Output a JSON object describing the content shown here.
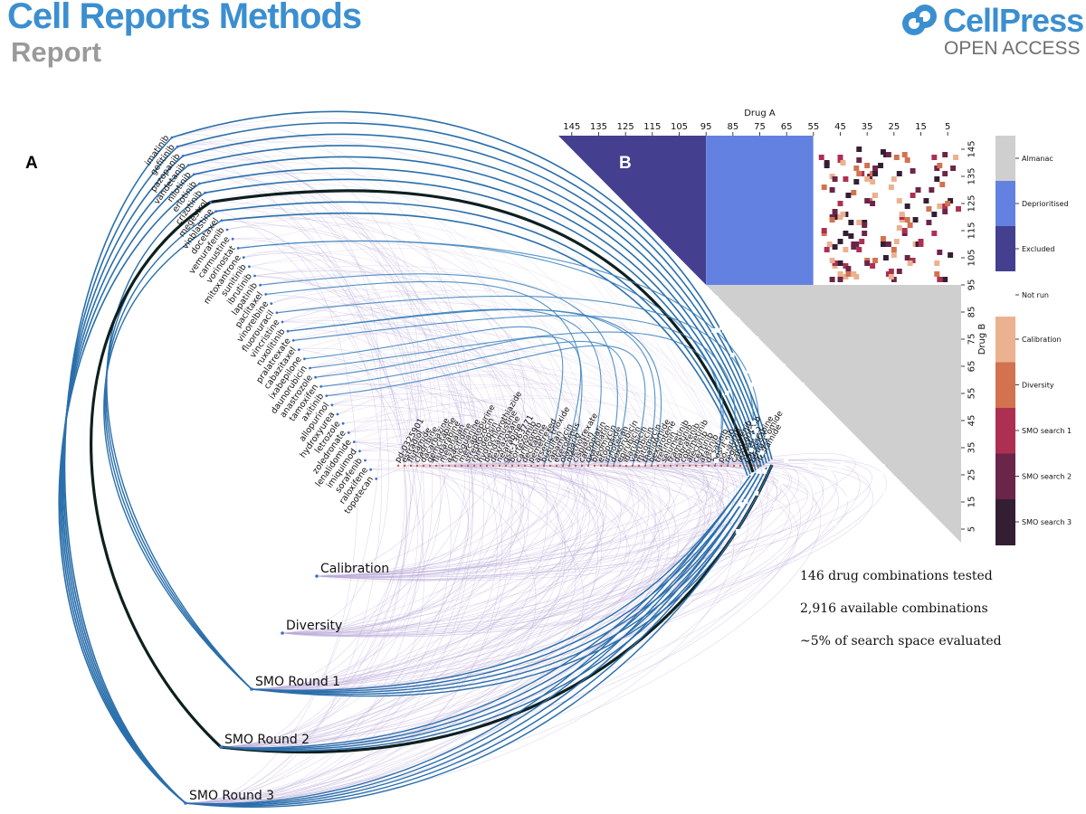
{
  "header": {
    "journal": "Cell Reports Methods",
    "article_type": "Report",
    "publisher": "CellPress",
    "access": "OPEN ACCESS"
  },
  "panels": {
    "a": "A",
    "b": "B"
  },
  "figure_a": {
    "rounds": [
      "Calibration",
      "Diversity",
      "SMO Round 1",
      "SMO Round 2",
      "SMO Round 3"
    ],
    "drugs_left": [
      "imatinib",
      "gefitinib",
      "pazopanib",
      "vandetanib",
      "nilotinib",
      "erlotinib",
      "crizotinib",
      "megestrol",
      "vinblastine",
      "docetaxel",
      "vemurafenib",
      "carmustine",
      "vorinostat",
      "mitoxantrone",
      "sunitinib",
      "ibrutinib",
      "lapatinib",
      "paclitaxel",
      "vinorelbine",
      "fluorouracil",
      "vincristine",
      "ruxolitinib",
      "pralatrexate",
      "cabazitaxel",
      "ixabepilone",
      "daunorubicin",
      "anastrozole",
      "tamoxifen",
      "axitinib",
      "allopurinol",
      "hydroxyurea",
      "letrozole",
      "zoledronate",
      "lenalidomide",
      "imiquimod",
      "sorafenib",
      "raloxifene",
      "topotecan"
    ],
    "drugs_right": [
      "pd-0325901",
      "estradiol",
      "flutamide",
      "cladribine",
      "dacarbazine",
      "gemcitabine",
      "fludarabine",
      "melphalan",
      "azacitidine",
      "thioguanine",
      "mercaptopurine",
      "streptozocin",
      "romidepsin",
      "hydrochlorothiazide",
      "bendamustine",
      "dexrazoxane",
      "nelarabine",
      "gsk-1363771",
      "bortezomib",
      "carfilzomib",
      "decitabine",
      "pemetrexed",
      "arsenic trioxide",
      "busulfan",
      "rapamycin",
      "everolimus",
      "olaparib",
      "methotrexate",
      "cisplatin",
      "carboplatin",
      "oxaliplatin",
      "bleomycin",
      "etoposide",
      "irinotecan",
      "doxorubicin",
      "epirubicin",
      "idarubicin",
      "valrubicin",
      "mitomycin",
      "thalidomide",
      "bexarotene",
      "tretinoin",
      "selumetinib",
      "trametinib",
      "dabrafenib",
      "cobimetinib",
      "alectinib",
      "ceritinib",
      "afatinib",
      "dasatinib",
      "bosutinib",
      "ponatinib",
      "regorafenib",
      "cabozantinib",
      "lenvatinib",
      "capecitabine",
      "temozolomide",
      "ifosfamide"
    ]
  },
  "figure_b": {
    "x_title": "Drug A",
    "y_title": "Drug B",
    "x_ticks": [
      "145",
      "135",
      "125",
      "115",
      "105",
      "95",
      "85",
      "75",
      "65",
      "55",
      "45",
      "35",
      "25",
      "15",
      "5"
    ],
    "y_ticks": [
      "145",
      "135",
      "125",
      "115",
      "105",
      "95",
      "85",
      "75",
      "65",
      "55",
      "45",
      "35",
      "25",
      "15",
      "5"
    ],
    "legend_top": [
      "Almanac",
      "Deprioritised",
      "Excluded"
    ],
    "legend_mid": "Not run",
    "legend_bottom": [
      "Calibration",
      "Diversity",
      "SMO search 1",
      "SMO search 2",
      "SMO search 3"
    ],
    "colors": {
      "almanac": "#cfcfcf",
      "deprioritised": "#6381e0",
      "excluded": "#443f8f",
      "calibration": "#ebb190",
      "diversity": "#d2724f",
      "smo1": "#ad2f52",
      "smo2": "#6b2548",
      "smo3": "#341e34"
    }
  },
  "stats": [
    "146 drug combinations tested",
    "2,916 available combinations",
    "~5% of search space evaluated"
  ]
}
